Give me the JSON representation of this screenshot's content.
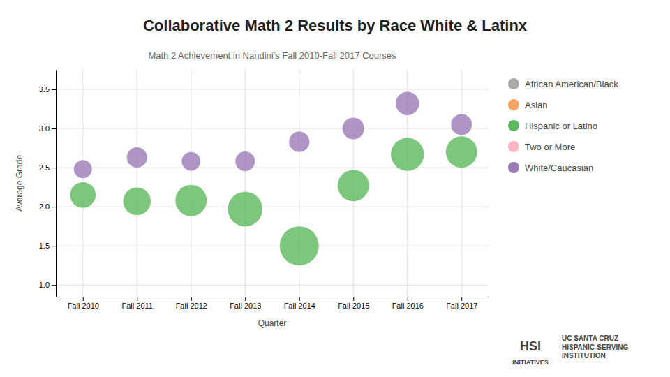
{
  "chart_data": {
    "type": "bubble",
    "title": "Collaborative Math 2 Results by Race White & Latinx",
    "subtitle": "Math 2 Achievement in Nandini's Fall 2010-Fall 2017 Courses",
    "x_label": "Quarter",
    "y_label": "Average Grade",
    "categories": [
      "Fall 2010",
      "Fall 2011",
      "Fall 2012",
      "Fall 2013",
      "Fall 2014",
      "Fall 2015",
      "Fall 2016",
      "Fall 2017"
    ],
    "series": [
      {
        "name": "African American/Black",
        "color": "#aaaaaa",
        "values": [
          null,
          null,
          null,
          null,
          null,
          null,
          null,
          null
        ],
        "sizes": [
          null,
          null,
          null,
          null,
          null,
          null,
          null,
          null
        ]
      },
      {
        "name": "Asian",
        "color": "#f4a460",
        "values": [
          null,
          null,
          null,
          null,
          null,
          null,
          null,
          null
        ],
        "sizes": [
          null,
          null,
          null,
          null,
          null,
          null,
          null,
          null
        ]
      },
      {
        "name": "Hispanic or Latino",
        "color": "#5cb85c",
        "values": [
          2.15,
          2.07,
          2.08,
          1.97,
          1.5,
          2.27,
          2.67,
          2.7
        ],
        "sizes": [
          600,
          700,
          900,
          1100,
          1400,
          900,
          1000,
          900
        ]
      },
      {
        "name": "Two or More",
        "color": "#ffb6c1",
        "values": [
          null,
          null,
          null,
          null,
          null,
          null,
          null,
          null
        ],
        "sizes": [
          null,
          null,
          null,
          null,
          null,
          null,
          null,
          null
        ]
      },
      {
        "name": "White/Caucasian",
        "color": "#9b7bb8",
        "values": [
          2.48,
          2.63,
          2.58,
          2.58,
          2.83,
          3.0,
          3.32,
          3.05
        ],
        "sizes": [
          300,
          380,
          320,
          350,
          380,
          430,
          500,
          400
        ]
      }
    ],
    "ylim": [
      0.85,
      3.75
    ],
    "yticks": [
      {
        "value": 1.0,
        "label": "1.0"
      },
      1.5,
      {
        "value": 2.0,
        "label": "2.0"
      },
      2.5,
      {
        "value": 3.0,
        "label": "3.0"
      },
      3.5
    ],
    "grid": true,
    "annotations": [
      "UC SANTA CRUZ\nHISPANIC-SERVING\nINSTITUTION",
      "HSI",
      "INITIATIVES"
    ]
  }
}
